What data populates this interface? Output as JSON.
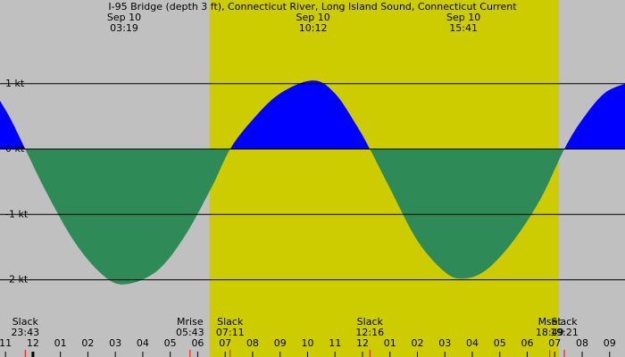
{
  "chart_data": {
    "type": "area",
    "title": "I-95 Bridge (depth 3 ft), Connecticut River, Long Island Sound, Connecticut Current",
    "x": [
      -1.2,
      -0.8,
      -0.28,
      0.5,
      1.5,
      2.5,
      3.32,
      4.5,
      5.5,
      6.5,
      7.18,
      8,
      9,
      10.2,
      11,
      11.8,
      12.27,
      13,
      14,
      15,
      15.68,
      16.5,
      17.5,
      18.5,
      19.35,
      20,
      20.8,
      21.56
    ],
    "values": [
      0.74,
      0.45,
      0,
      -0.67,
      -1.41,
      -1.91,
      -2.07,
      -1.87,
      -1.35,
      -0.59,
      0,
      0.45,
      0.85,
      1.05,
      0.85,
      0.35,
      0,
      -0.6,
      -1.4,
      -1.88,
      -1.98,
      -1.85,
      -1.4,
      -0.75,
      0,
      0.45,
      0.85,
      1.0
    ],
    "positive_color": "#0000ff",
    "negative_color": "#2e8b57",
    "background_color": "#c0c0c0",
    "daylight_color": "#cccc00",
    "daylight": [
      6.43,
      19.15
    ],
    "xlim": [
      -1.2,
      21.56
    ],
    "ylim": [
      -3.18,
      2.28
    ],
    "yticks": [
      {
        "value": 1,
        "label": "1 kt"
      },
      {
        "value": 0,
        "label": "0 kt"
      },
      {
        "value": -1,
        "label": "-1 kt"
      },
      {
        "value": -2,
        "label": "-2 kt"
      }
    ],
    "xticks": [
      {
        "value": -1,
        "label": "11"
      },
      {
        "value": 0,
        "label": "12"
      },
      {
        "value": 1,
        "label": "01"
      },
      {
        "value": 2,
        "label": "02"
      },
      {
        "value": 3,
        "label": "03"
      },
      {
        "value": 4,
        "label": "04"
      },
      {
        "value": 5,
        "label": "05"
      },
      {
        "value": 6,
        "label": "06"
      },
      {
        "value": 7,
        "label": "07"
      },
      {
        "value": 8,
        "label": "08"
      },
      {
        "value": 9,
        "label": "09"
      },
      {
        "value": 10,
        "label": "10"
      },
      {
        "value": 11,
        "label": "11"
      },
      {
        "value": 12,
        "label": "12"
      },
      {
        "value": 13,
        "label": "01"
      },
      {
        "value": 14,
        "label": "02"
      },
      {
        "value": 15,
        "label": "03"
      },
      {
        "value": 16,
        "label": "04"
      },
      {
        "value": 17,
        "label": "05"
      },
      {
        "value": 18,
        "label": "06"
      },
      {
        "value": 19,
        "label": "07"
      },
      {
        "value": 20,
        "label": "08"
      },
      {
        "value": 21,
        "label": "09"
      }
    ],
    "annotations": [
      {
        "date": "Sep 10",
        "time": "03:19",
        "x": 3.32
      },
      {
        "date": "Sep 10",
        "time": "10:12",
        "x": 10.2
      },
      {
        "date": "Sep 10",
        "time": "15:41",
        "x": 15.68
      }
    ],
    "events": [
      {
        "label": "Slack",
        "time": "23:43",
        "x": -0.28
      },
      {
        "label": "Mrise",
        "time": "05:43",
        "x": 5.72
      },
      {
        "label": "Slack",
        "time": "07:11",
        "x": 7.18
      },
      {
        "label": "Slack",
        "time": "12:16",
        "x": 12.27
      },
      {
        "label": "Mset",
        "time": "18:49",
        "x": 18.82
      },
      {
        "label": "Slack",
        "time": "19:21",
        "x": 19.35
      }
    ]
  }
}
